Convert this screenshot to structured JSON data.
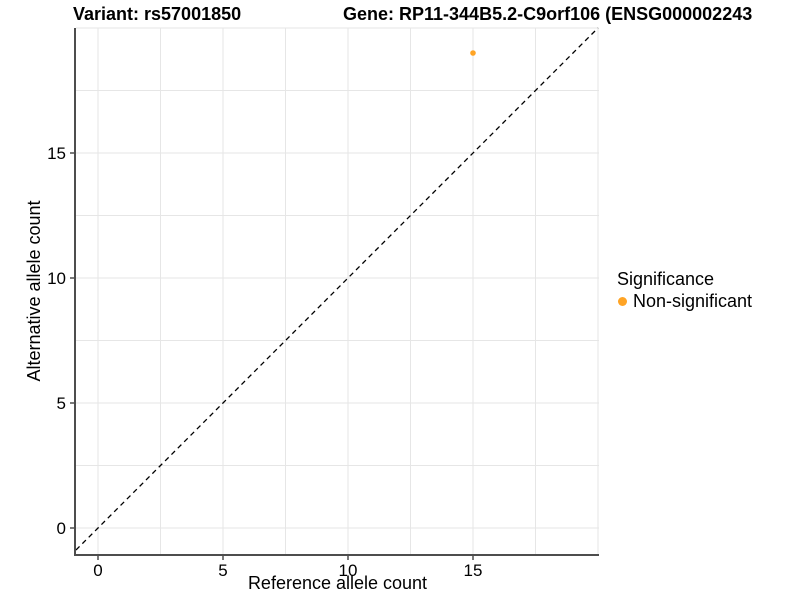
{
  "chart_data": {
    "type": "scatter",
    "titles": {
      "left": "Variant: rs57001850",
      "right": "Gene: RP11-344B5.2-C9orf106 (ENSG000002243"
    },
    "xlabel": "Reference allele count",
    "ylabel": "Alternative allele count",
    "xlim": [
      -0.88,
      20.04
    ],
    "ylim": [
      -1.04,
      20.0
    ],
    "xticks": [
      0,
      5,
      10,
      15
    ],
    "yticks": [
      0,
      5,
      10,
      15
    ],
    "grid_step": 2.5,
    "grid_max": 20,
    "grid_on": true,
    "identity_line": {
      "style": "dashed",
      "color": "#000000",
      "equation": "y = x"
    },
    "series": [
      {
        "name": "Non-significant",
        "color": "#FFA425",
        "points": [
          {
            "x": 15,
            "y": 19
          }
        ]
      }
    ],
    "legend": {
      "title": "Significance",
      "position": "right",
      "items": [
        {
          "label": "Non-significant",
          "color": "#FFA425",
          "icon": "point-icon"
        }
      ]
    },
    "colors": {
      "background": "#FFFFFF",
      "grid": "#E6E6E6",
      "axis": "#4D4D4D",
      "text": "#000000"
    }
  }
}
